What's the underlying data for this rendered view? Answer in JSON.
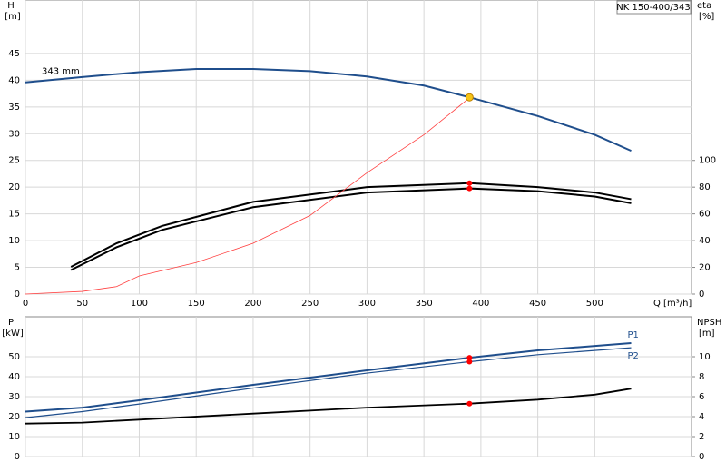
{
  "chart_data": [
    {
      "type": "line",
      "y_label": "H",
      "y_unit": "[m]",
      "y2_label": "eta",
      "y2_unit": "[%]",
      "x_label": "Q [m³/h]",
      "model": "NK 150-400/343",
      "xlim": [
        0,
        585
      ],
      "xticks": [
        0,
        50,
        100,
        150,
        200,
        250,
        300,
        350,
        400,
        450,
        500
      ],
      "ylim": [
        0,
        55
      ],
      "yticks": [
        0,
        5,
        10,
        15,
        20,
        25,
        30,
        35,
        40,
        45
      ],
      "y2lim": [
        0,
        220
      ],
      "y2ticks": [
        0,
        20,
        40,
        60,
        80,
        100
      ],
      "grid": true,
      "series": [
        {
          "name": "343 mm",
          "color": "#1f4e8c",
          "width": 2,
          "x": [
            0,
            50,
            100,
            150,
            200,
            250,
            300,
            350,
            390,
            450,
            500,
            532
          ],
          "values": [
            39.6,
            40.6,
            41.5,
            42.1,
            42.1,
            41.7,
            40.7,
            39.0,
            36.8,
            33.3,
            29.8,
            26.8
          ]
        },
        {
          "color": "#000000",
          "width": 2,
          "axis": "y2",
          "x": [
            40,
            80,
            120,
            200,
            300,
            390,
            450,
            500,
            532
          ],
          "values": [
            20.4,
            38,
            51,
            69,
            80,
            83,
            80,
            76,
            71
          ]
        },
        {
          "color": "#000000",
          "width": 2,
          "axis": "y2",
          "x": [
            40,
            80,
            120,
            200,
            300,
            390,
            450,
            500,
            532
          ],
          "values": [
            18,
            35,
            48,
            65,
            76,
            79,
            77,
            73,
            68
          ]
        },
        {
          "color": "#ff4040",
          "width": 0.8,
          "x": [
            0,
            50,
            80,
            100,
            150,
            200,
            250,
            300,
            350,
            390
          ],
          "values": [
            0,
            0.5,
            1.4,
            3.4,
            5.9,
            9.5,
            14.7,
            22.7,
            29.8,
            36.7
          ]
        }
      ],
      "markers": [
        {
          "x": 390,
          "y": 36.8,
          "color": "#f5c518"
        },
        {
          "x": 390,
          "y": 83,
          "color": "#ff0000",
          "axis": "y2"
        },
        {
          "x": 390,
          "y": 79,
          "color": "#ff0000",
          "axis": "y2"
        }
      ]
    },
    {
      "type": "line",
      "y_label": "P",
      "y_unit": "[kW]",
      "y2_label": "NPSH",
      "y2_unit": "[m]",
      "xlim": [
        0,
        585
      ],
      "xticks": [
        0,
        50,
        100,
        150,
        200,
        250,
        300,
        350,
        400,
        450,
        500
      ],
      "ylim": [
        0,
        70
      ],
      "yticks": [
        0,
        10,
        20,
        30,
        40,
        50
      ],
      "y2lim": [
        0,
        14
      ],
      "y2ticks": [
        0,
        2,
        4,
        6,
        8,
        10
      ],
      "grid": true,
      "series": [
        {
          "name": "P1",
          "color": "#1f4e8c",
          "width": 2,
          "x": [
            0,
            50,
            100,
            200,
            300,
            390,
            450,
            532
          ],
          "values": [
            22.5,
            24.5,
            28.2,
            35.9,
            43.2,
            49.5,
            53.2,
            56.8
          ]
        },
        {
          "name": "P2",
          "color": "#1f4e8c",
          "width": 1.2,
          "x": [
            0,
            50,
            100,
            200,
            300,
            390,
            450,
            532
          ],
          "values": [
            19.5,
            22.5,
            26.3,
            34.3,
            41.8,
            47.5,
            51,
            54.5
          ]
        },
        {
          "color": "#000000",
          "width": 1.8,
          "axis": "y2",
          "x": [
            0,
            50,
            100,
            200,
            300,
            390,
            450,
            500,
            532
          ],
          "values": [
            3.3,
            3.4,
            3.7,
            4.3,
            4.9,
            5.3,
            5.7,
            6.2,
            6.8
          ]
        }
      ],
      "markers": [
        {
          "x": 390,
          "y": 49.5,
          "color": "#ff0000"
        },
        {
          "x": 390,
          "y": 47.5,
          "color": "#ff0000"
        },
        {
          "x": 390,
          "y": 5.3,
          "color": "#ff0000",
          "axis": "y2"
        }
      ]
    }
  ]
}
